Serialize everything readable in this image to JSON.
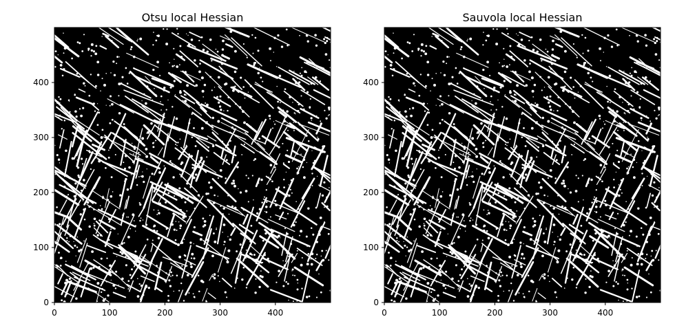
{
  "figure": {
    "panels": [
      {
        "title": "Otsu local Hessian",
        "x_ticks": [
          "0",
          "100",
          "200",
          "300",
          "400"
        ],
        "y_ticks": [
          "0",
          "100",
          "200",
          "300",
          "400"
        ],
        "xlim": [
          0,
          500
        ],
        "ylim": [
          0,
          500
        ],
        "image": "binary-threshold-texture",
        "seed": 7
      },
      {
        "title": "Sauvola local Hessian",
        "x_ticks": [
          "0",
          "100",
          "200",
          "300",
          "400"
        ],
        "y_ticks": [
          "0",
          "100",
          "200",
          "300",
          "400"
        ],
        "xlim": [
          0,
          500
        ],
        "ylim": [
          0,
          500
        ],
        "image": "binary-threshold-texture",
        "seed": 7
      }
    ],
    "colors": {
      "foreground": "#ffffff",
      "background": "#000000"
    }
  }
}
